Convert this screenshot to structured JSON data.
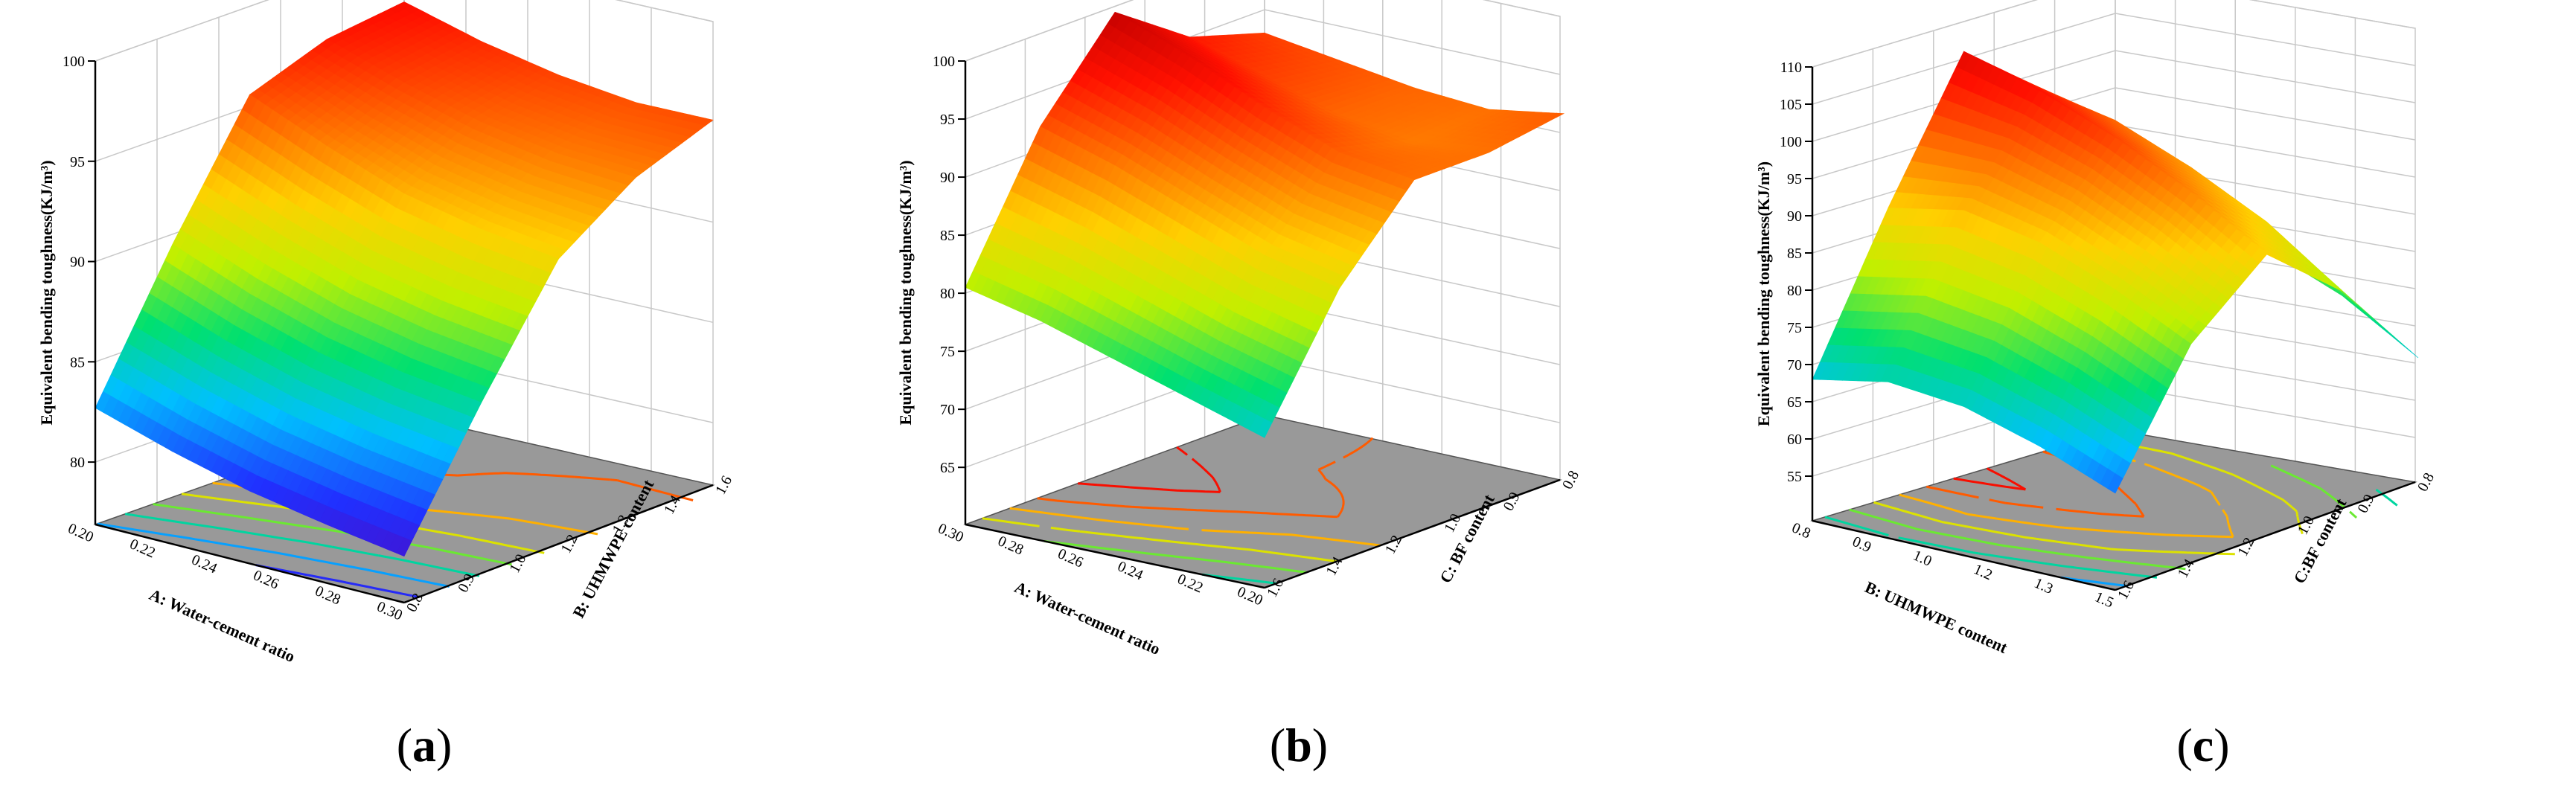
{
  "chart_data": [
    {
      "type": "surface",
      "panel": "a",
      "zlabel": "Equivalent bending toughness(KJ/m³)",
      "xlabel": "A: Water-cement ratio",
      "ylabel": "B: UHMWPE content",
      "x_ticks": [
        "0.20",
        "0.22",
        "0.24",
        "0.26",
        "0.28",
        "0.30"
      ],
      "y_ticks": [
        "0.8",
        "0.9",
        "1.0",
        "1.2",
        "1.3",
        "1.4",
        "1.6"
      ],
      "z_ticks": [
        "80",
        "85",
        "90",
        "95",
        "100"
      ],
      "xlim": [
        0.2,
        0.3
      ],
      "ylim": [
        0.8,
        1.6
      ],
      "zlim": [
        78,
        100
      ],
      "surface_z": [
        [
          82.7,
          89.5,
          95.6,
          97.0,
          97.5
        ],
        [
          81.5,
          88.0,
          94.0,
          95.8,
          96.5
        ],
        [
          80.5,
          86.8,
          92.6,
          94.8,
          95.8
        ],
        [
          79.8,
          86.0,
          91.8,
          94.2,
          95.4
        ],
        [
          79.2,
          85.5,
          91.3,
          94.0,
          95.5
        ]
      ]
    },
    {
      "type": "surface",
      "panel": "b",
      "zlabel": "Equivalent bending toughness(KJ/m³)",
      "xlabel": "A: Water-cement ratio",
      "ylabel": "C: BF content",
      "x_ticks": [
        "0.30",
        "0.28",
        "0.26",
        "0.24",
        "0.22",
        "0.20"
      ],
      "y_ticks": [
        "1.6",
        "1.4",
        "1.2",
        "1.0",
        "0.9",
        "0.8"
      ],
      "z_ticks": [
        "65",
        "70",
        "75",
        "80",
        "85",
        "90",
        "95",
        "100"
      ],
      "xlim": [
        0.3,
        0.2
      ],
      "ylim": [
        1.6,
        0.8
      ],
      "zlim": [
        62,
        100
      ],
      "surface_z": [
        [
          80.5,
          92.0,
          99.5,
          95.0,
          93.0
        ],
        [
          79.0,
          90.0,
          97.0,
          93.0,
          92.0
        ],
        [
          77.0,
          87.5,
          94.0,
          91.0,
          91.0
        ],
        [
          75.0,
          85.0,
          91.5,
          90.0,
          90.5
        ],
        [
          73.0,
          83.5,
          90.5,
          90.5,
          91.5
        ]
      ]
    },
    {
      "type": "surface",
      "panel": "c",
      "zlabel": "Equivalent bending toughness(KJ/m³)",
      "xlabel": "B: UHMWPE content",
      "ylabel": "C:BF content",
      "x_ticks": [
        "0.8",
        "0.9",
        "1.0",
        "1.2",
        "1.3",
        "1.5"
      ],
      "y_ticks": [
        "1.6",
        "1.4",
        "1.2",
        "1.0",
        "0.9",
        "0.8"
      ],
      "z_ticks": [
        "55",
        "60",
        "65",
        "70",
        "75",
        "80",
        "85",
        "90",
        "95",
        "100",
        "105",
        "110"
      ],
      "xlim": [
        0.8,
        1.5
      ],
      "ylim": [
        1.6,
        0.8
      ],
      "zlim": [
        52,
        110
      ],
      "surface_z": [
        [
          68.0,
          88.0,
          106.0,
          98.0,
          78.0
        ],
        [
          70.0,
          90.0,
          103.0,
          96.0,
          80.0
        ],
        [
          69.0,
          88.0,
          99.0,
          92.0,
          78.0
        ],
        [
          66.0,
          84.0,
          94.0,
          87.0,
          74.0
        ],
        [
          62.0,
          79.0,
          88.0,
          80.0,
          68.0
        ]
      ]
    }
  ],
  "captions": [
    "a",
    "b",
    "c"
  ],
  "colors": {
    "background": "#ffffff",
    "floor": "#999999",
    "grid": "#c8c8c8",
    "colormap": [
      "#5a00b4",
      "#2030ff",
      "#00c0ff",
      "#00e070",
      "#c0f000",
      "#ffd000",
      "#ff7000",
      "#ff1000",
      "#c00000"
    ]
  }
}
